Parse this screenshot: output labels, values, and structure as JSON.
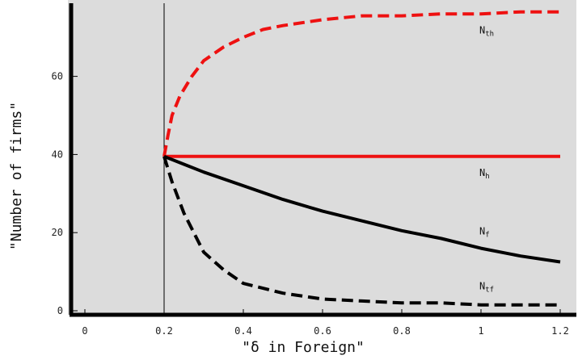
{
  "chart_data": {
    "type": "line",
    "title": "",
    "xlabel": "\"δ in Foreign\"",
    "ylabel": "\"Number of firms\"",
    "xlim": [
      -0.05,
      1.22
    ],
    "ylim": [
      -1,
      79
    ],
    "x_ticks": [
      {
        "value": 0,
        "label": "0"
      },
      {
        "value": 0.2,
        "label": "0.2"
      },
      {
        "value": 0.4,
        "label": "0.4"
      },
      {
        "value": 0.6,
        "label": "0.6"
      },
      {
        "value": 0.8,
        "label": "0.8"
      },
      {
        "value": 1.0,
        "label": "1"
      },
      {
        "value": 1.2,
        "label": "1.2"
      }
    ],
    "y_ticks": [
      {
        "value": 0,
        "label": "0"
      },
      {
        "value": 20,
        "label": "20"
      },
      {
        "value": 40,
        "label": "40"
      },
      {
        "value": 60,
        "label": "60"
      }
    ],
    "vertical_reference_line": 0.2,
    "grid": false,
    "background": "#dcdcdc",
    "series": [
      {
        "label_main": "N",
        "label_sub": "th",
        "color": "#ee1111",
        "dash": "dashed",
        "label_at": [
          1.0,
          71
        ],
        "points": [
          [
            0.2,
            39.5
          ],
          [
            0.21,
            45
          ],
          [
            0.22,
            50
          ],
          [
            0.24,
            55
          ],
          [
            0.27,
            60
          ],
          [
            0.3,
            64
          ],
          [
            0.35,
            67.5
          ],
          [
            0.4,
            70
          ],
          [
            0.45,
            72
          ],
          [
            0.5,
            73
          ],
          [
            0.6,
            74.5
          ],
          [
            0.7,
            75.5
          ],
          [
            0.8,
            75.5
          ],
          [
            0.9,
            76
          ],
          [
            1.0,
            76
          ],
          [
            1.1,
            76.5
          ],
          [
            1.2,
            76.5
          ]
        ]
      },
      {
        "label_main": "N",
        "label_sub": "h",
        "color": "#ee1111",
        "dash": "solid",
        "label_at": [
          1.0,
          34.5
        ],
        "points": [
          [
            0.2,
            39.5
          ],
          [
            1.2,
            39.5
          ]
        ]
      },
      {
        "label_main": "N",
        "label_sub": "f",
        "color": "#000000",
        "dash": "solid",
        "label_at": [
          1.0,
          19.5
        ],
        "points": [
          [
            0.2,
            39.5
          ],
          [
            0.25,
            37.5
          ],
          [
            0.3,
            35.5
          ],
          [
            0.4,
            32
          ],
          [
            0.5,
            28.5
          ],
          [
            0.6,
            25.5
          ],
          [
            0.7,
            23
          ],
          [
            0.8,
            20.5
          ],
          [
            0.9,
            18.5
          ],
          [
            1.0,
            16
          ],
          [
            1.1,
            14
          ],
          [
            1.2,
            12.5
          ]
        ]
      },
      {
        "label_main": "N",
        "label_sub": "tf",
        "color": "#000000",
        "dash": "dashed",
        "label_at": [
          1.0,
          5.5
        ],
        "points": [
          [
            0.2,
            39.5
          ],
          [
            0.22,
            33
          ],
          [
            0.25,
            25
          ],
          [
            0.3,
            15
          ],
          [
            0.35,
            10.5
          ],
          [
            0.4,
            7
          ],
          [
            0.5,
            4.5
          ],
          [
            0.6,
            3
          ],
          [
            0.7,
            2.5
          ],
          [
            0.8,
            2
          ],
          [
            0.9,
            2
          ],
          [
            1.0,
            1.5
          ],
          [
            1.1,
            1.5
          ],
          [
            1.2,
            1.5
          ]
        ]
      }
    ]
  }
}
